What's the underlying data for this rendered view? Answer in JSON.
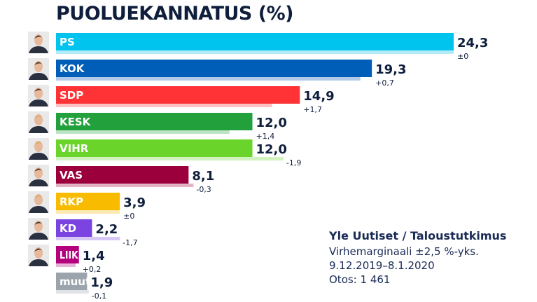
{
  "chart_data": {
    "type": "bar",
    "orientation": "horizontal",
    "title": "PUOLUEKANNATUS (%)",
    "categories": [
      "PS",
      "KOK",
      "SDP",
      "KESK",
      "VIHR",
      "VAS",
      "RKP",
      "KD",
      "LIIK",
      "muut"
    ],
    "series": [
      {
        "values": [
          24.3,
          19.3,
          14.9,
          12.0,
          12.0,
          8.1,
          3.9,
          2.2,
          1.4,
          1.9
        ]
      },
      {
        "values": [
          24.3,
          18.6,
          13.2,
          10.6,
          13.9,
          8.4,
          3.9,
          3.9,
          1.2,
          2.0
        ]
      }
    ],
    "value_labels": [
      "24,3",
      "19,3",
      "14,9",
      "12,0",
      "12,0",
      "8,1",
      "3,9",
      "2,2",
      "1,4",
      "1,9"
    ],
    "change_labels": [
      "±0",
      "+0,7",
      "+1,7",
      "+1,4",
      "-1,9",
      "-0,3",
      "±0",
      "-1,7",
      "+0,2",
      "-0,1"
    ],
    "colors": [
      "#00c3ee",
      "#005eb8",
      "#ff3336",
      "#22a03c",
      "#6ad42a",
      "#9c003c",
      "#f9bb00",
      "#7b44e0",
      "#b4007d",
      "#9ba4ad"
    ],
    "prev_colors": [
      "#b3ecf9",
      "#b3cbe9",
      "#ffc2c3",
      "#bde3c5",
      "#d2f2bf",
      "#e1b3c5",
      "#fdeab3",
      "#d7c7f6",
      "#e8b3d8",
      "#e1e4e7"
    ],
    "portraits": [
      true,
      true,
      true,
      true,
      true,
      true,
      true,
      true,
      true,
      false
    ],
    "xlim": [
      0,
      24.3
    ],
    "grid": false,
    "legend": "none"
  },
  "source": {
    "title": "Yle Uutiset / Taloustutkimus",
    "margin": "Virhemarginaali ±2,5 %-yks.",
    "dates": "9.12.2019–8.1.2020",
    "sample": "Otos: 1 461"
  }
}
